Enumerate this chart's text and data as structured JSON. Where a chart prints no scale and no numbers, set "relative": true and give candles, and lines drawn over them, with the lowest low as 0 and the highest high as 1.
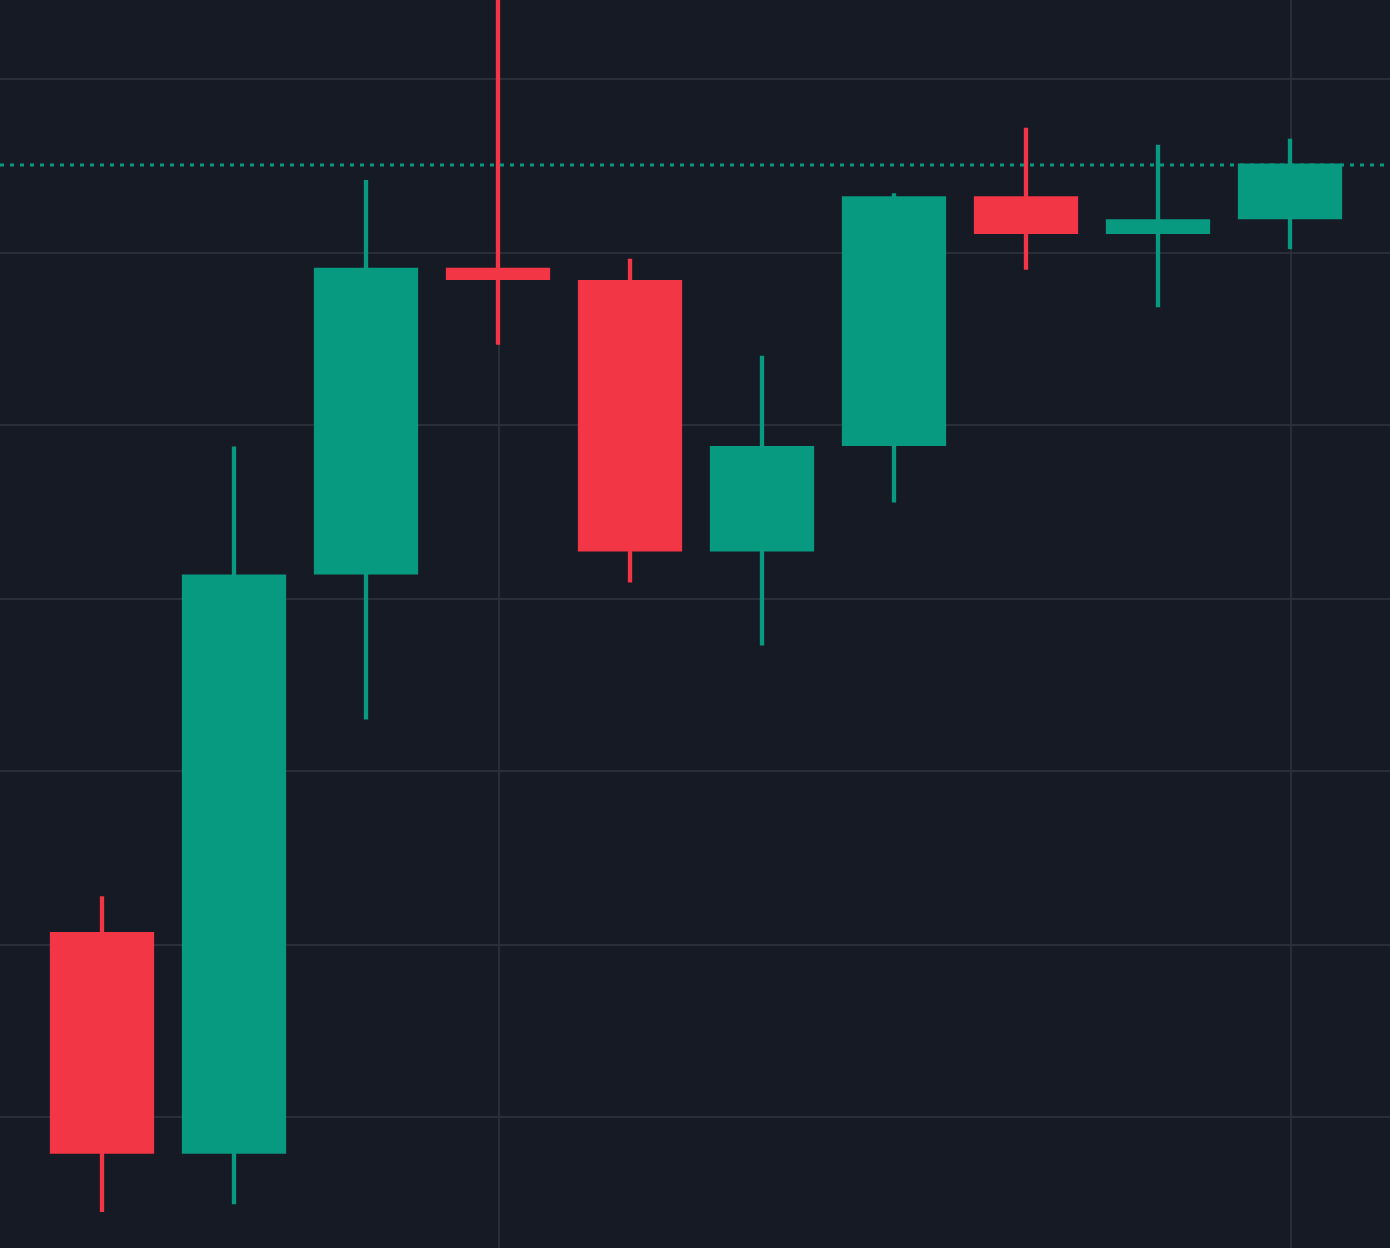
{
  "chart_data": {
    "type": "candlestick",
    "relative": true,
    "categories": [
      null,
      null,
      null,
      null,
      null,
      null,
      null,
      null,
      null,
      null
    ],
    "ohlc": [
      [
        0.231,
        0.26,
        0.0,
        0.048
      ],
      [
        0.048,
        0.631,
        0.007,
        0.526
      ],
      [
        0.526,
        0.851,
        0.407,
        0.779
      ],
      [
        0.779,
        1.0,
        0.716,
        0.769
      ],
      [
        0.769,
        0.786,
        0.52,
        0.545
      ],
      [
        0.545,
        0.706,
        0.468,
        0.632
      ],
      [
        0.632,
        0.84,
        0.586,
        0.838
      ],
      [
        0.838,
        0.894,
        0.778,
        0.807
      ],
      [
        0.807,
        0.88,
        0.747,
        0.819
      ],
      [
        0.819,
        0.885,
        0.795,
        0.865
      ]
    ],
    "colors": [
      "#f23645",
      "#089981",
      "#089981",
      "#f23645",
      "#f23645",
      "#089981",
      "#089981",
      "#f23645",
      "#089981",
      "#089981"
    ],
    "ref_lines": [
      {
        "axis": "y",
        "value": 0.865,
        "color": "#089981",
        "line_style": "dotted"
      }
    ],
    "grid": true,
    "legend": false,
    "tick_labels": false
  }
}
